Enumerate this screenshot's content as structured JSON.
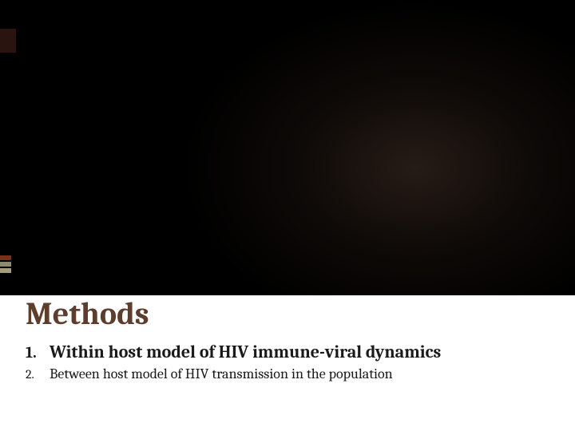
{
  "slide": {
    "background_top_color": "#000000",
    "background_bottom_color": "#ffffff",
    "spotlight_color": "#46322a",
    "heading": {
      "text": "Methods",
      "color": "#5e3d2c",
      "font_family": "Cambria",
      "font_size_pt": 30,
      "font_weight": 700
    },
    "list": {
      "items": [
        {
          "number": "1.",
          "text": "Within host model of HIV immune-viral dynamics",
          "bold": true,
          "font_size_pt": 16
        },
        {
          "number": "2.",
          "text": "Between host model of HIV transmission in the population",
          "bold": false,
          "font_size_pt": 13
        }
      ],
      "text_color": "#1a1a1a",
      "font_family": "Cambria"
    },
    "accents": {
      "left_top_block_color": "#2a1410",
      "left_ticks": [
        "#7a2f18",
        "#8a8a70",
        "#a69c7a"
      ]
    }
  }
}
